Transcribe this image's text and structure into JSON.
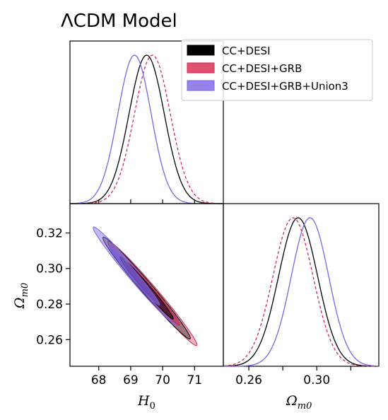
{
  "title": "ΛCDM Model",
  "legend": {
    "position": "top-right",
    "entries": [
      "CC+DESI",
      "CC+DESI+GRB",
      "CC+DESI+GRB+Union3"
    ]
  },
  "colors": {
    "CC+DESI": "#000000",
    "CC+DESI+GRB": "#d6254f",
    "CC+DESI+GRB+Union3": "#7c63e8"
  },
  "chart_data": {
    "type": "corner",
    "parameters": [
      {
        "name": "H0",
        "label": "H",
        "sub": "0",
        "range": [
          67.1,
          71.9
        ],
        "ticks": [
          68,
          69,
          70,
          71
        ]
      },
      {
        "name": "Om0",
        "label": "Ω",
        "sub": "m0",
        "range": [
          0.245,
          0.3365
        ],
        "ticks": [
          0.26,
          0.28,
          0.3,
          0.32
        ],
        "tick_labels_x": [
          "0.26",
          "0.30"
        ],
        "tick_labels_y": [
          "0.26",
          "0.28",
          "0.30",
          "0.32"
        ]
      }
    ],
    "series": [
      {
        "name": "CC+DESI",
        "style": "solid",
        "H0": {
          "mean": 69.5,
          "sigma": 0.55
        },
        "Om0": {
          "mean": 0.289,
          "sigma": 0.0115
        },
        "correlation": -0.985
      },
      {
        "name": "CC+DESI+GRB",
        "style": "dashed",
        "H0": {
          "mean": 69.68,
          "sigma": 0.56
        },
        "Om0": {
          "mean": 0.286,
          "sigma": 0.0118
        },
        "correlation": -0.985
      },
      {
        "name": "CC+DESI+GRB+Union3",
        "style": "solid",
        "H0": {
          "mean": 69.12,
          "sigma": 0.52
        },
        "Om0": {
          "mean": 0.296,
          "sigma": 0.011
        },
        "correlation": -0.985
      }
    ]
  }
}
